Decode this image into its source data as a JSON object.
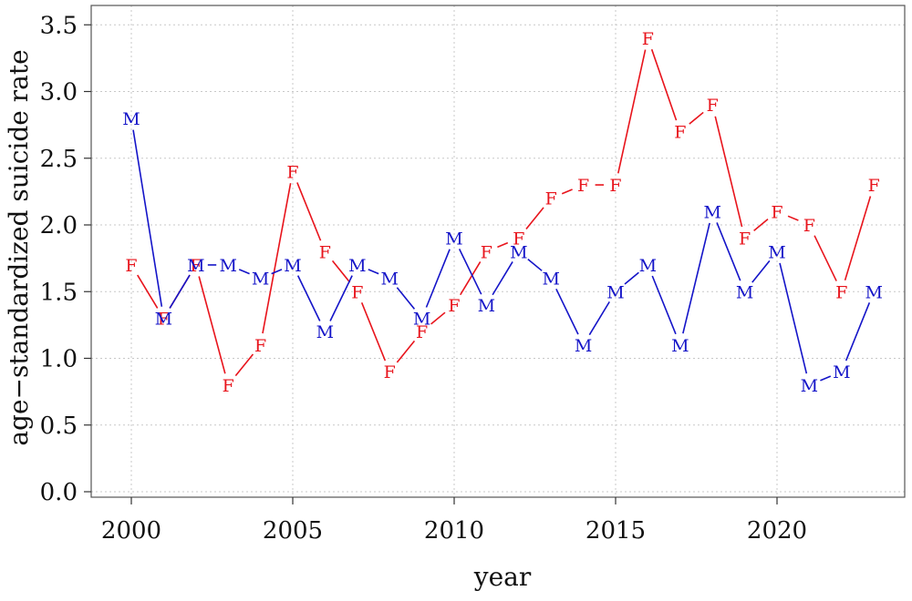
{
  "chart_data": {
    "type": "line",
    "xlabel": "year",
    "ylabel": "age−standardized suicide rate",
    "xlim": [
      1999,
      2024
    ],
    "ylim": [
      0,
      3.6
    ],
    "xticks": [
      2000,
      2005,
      2010,
      2015,
      2020
    ],
    "xtick_labels": [
      "2000",
      "2005",
      "2010",
      "2015",
      "2020"
    ],
    "yticks": [
      0,
      0.5,
      1,
      1.5,
      2,
      2.5,
      3,
      3.5
    ],
    "ytick_labels": [
      "0.0",
      "0.5",
      "1.0",
      "1.5",
      "2.0",
      "2.5",
      "3.0",
      "3.5"
    ],
    "grid": true,
    "x": [
      2000,
      2001,
      2002,
      2003,
      2004,
      2005,
      2006,
      2007,
      2008,
      2009,
      2010,
      2011,
      2012,
      2013,
      2014,
      2015,
      2016,
      2017,
      2018,
      2019,
      2020,
      2021,
      2022,
      2023
    ],
    "series": [
      {
        "marker": "F",
        "color": "#e8141c",
        "values": [
          1.7,
          1.3,
          1.7,
          0.8,
          1.1,
          2.4,
          1.8,
          1.5,
          0.9,
          1.2,
          1.4,
          1.8,
          1.9,
          2.2,
          2.3,
          2.3,
          3.4,
          2.7,
          2.9,
          1.9,
          2.1,
          2.0,
          1.5,
          2.3
        ]
      },
      {
        "marker": "M",
        "color": "#1414c8",
        "values": [
          2.8,
          1.3,
          1.7,
          1.7,
          1.6,
          1.7,
          1.2,
          1.7,
          1.6,
          1.3,
          1.9,
          1.4,
          1.8,
          1.6,
          1.1,
          1.5,
          1.7,
          1.1,
          2.1,
          1.5,
          1.8,
          0.8,
          0.9,
          1.5
        ]
      }
    ]
  }
}
